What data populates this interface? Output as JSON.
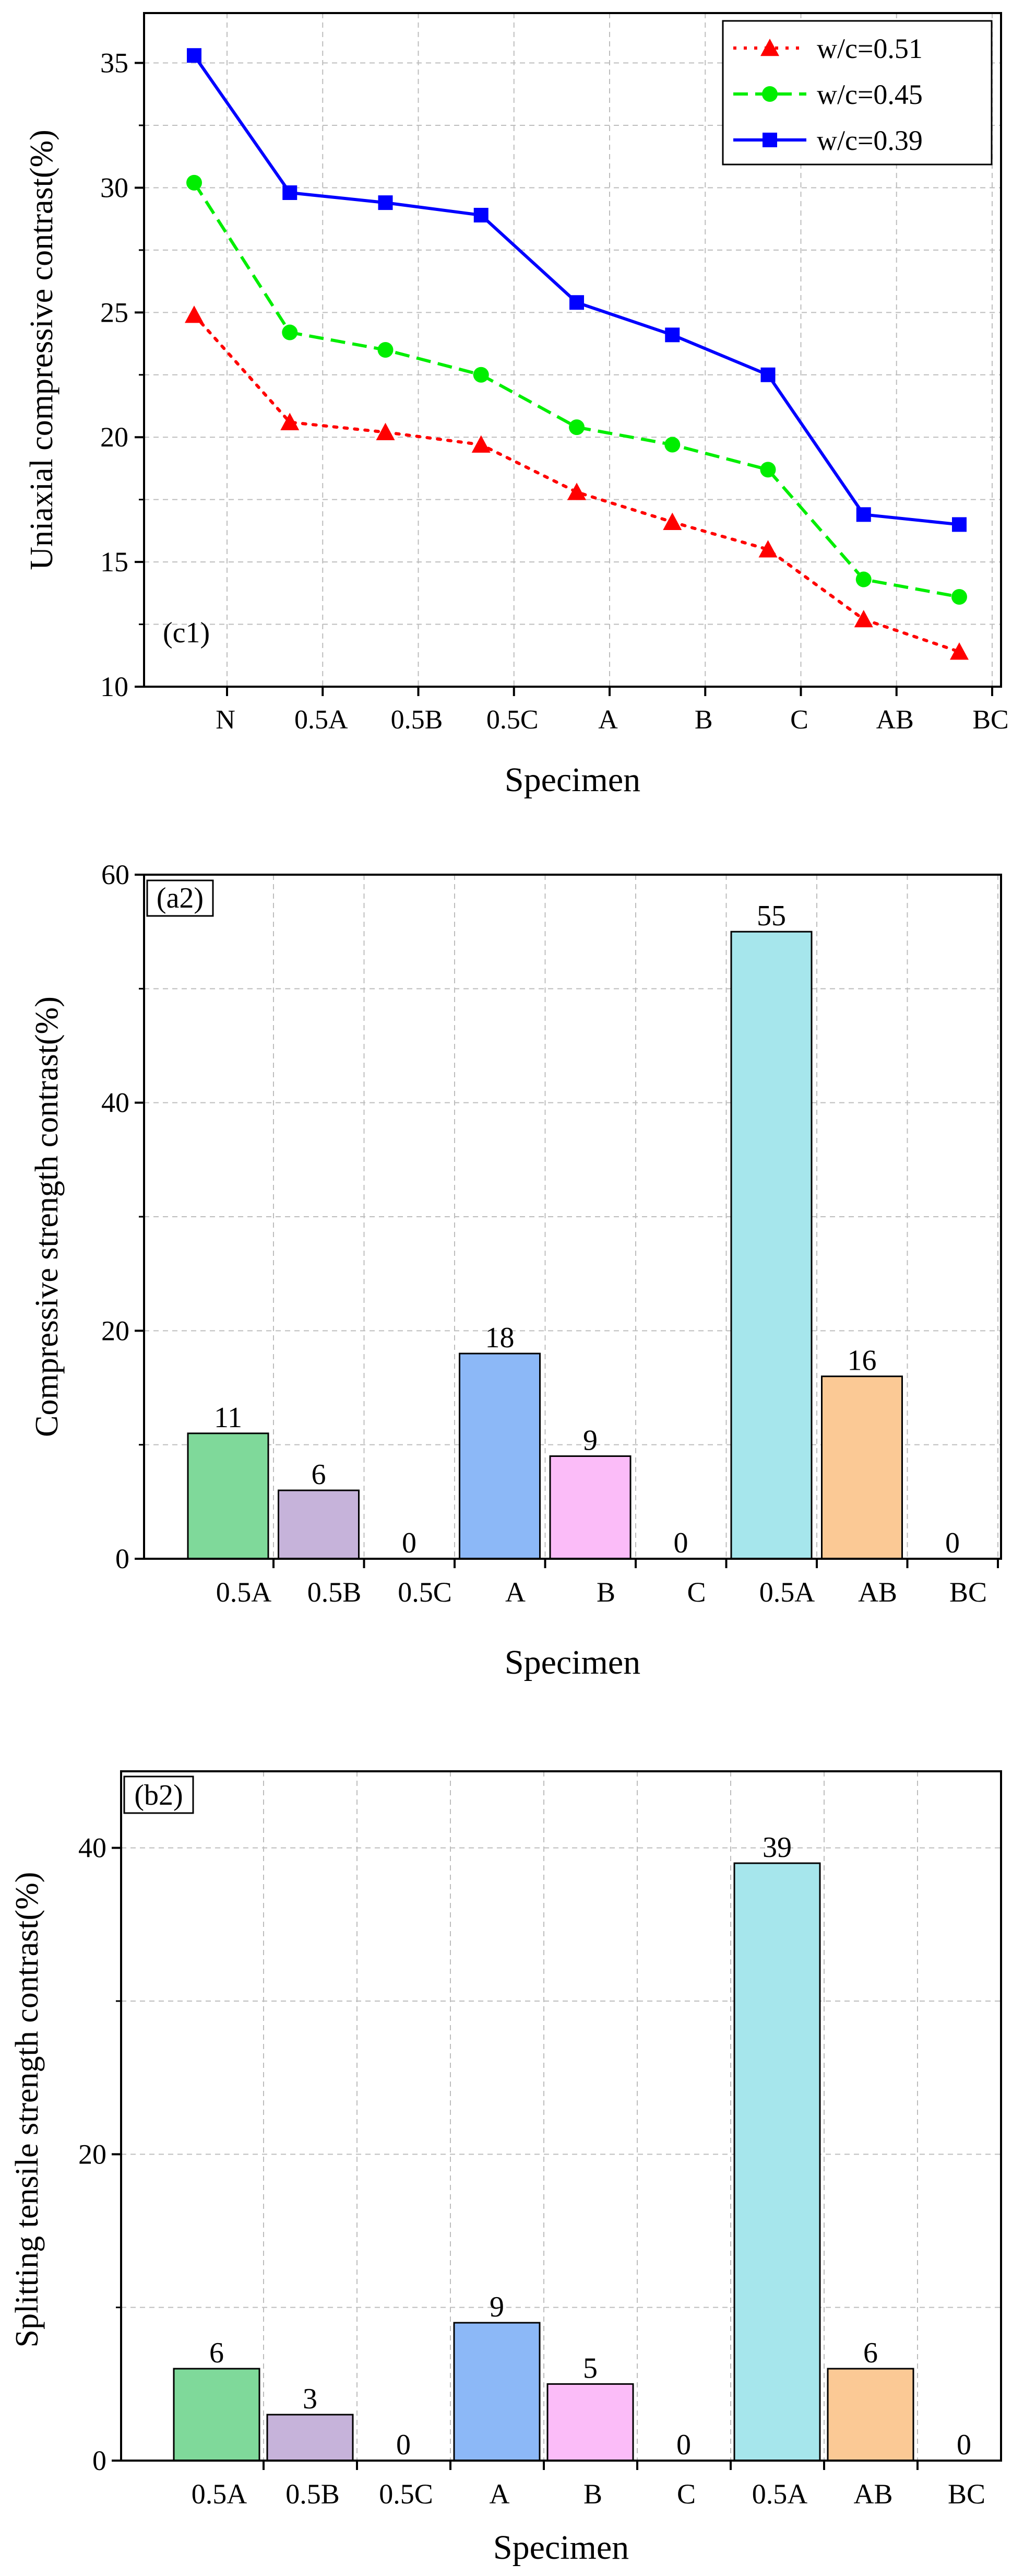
{
  "chart_data": [
    {
      "type": "line",
      "panel_label": "(c1)",
      "ylabel": "Uniaxial compressive contrast(%)",
      "xlabel": "Specimen",
      "categories": [
        "N",
        "0.5A",
        "0.5B",
        "0.5C",
        "A",
        "B",
        "C",
        "AB",
        "BC"
      ],
      "ylim": [
        10,
        37
      ],
      "yticks": [
        10,
        15,
        20,
        25,
        30,
        35
      ],
      "grid": true,
      "legend_position": "top-right",
      "series": [
        {
          "name": "w/c=0.51",
          "color": "#ff0000",
          "marker": "triangle",
          "dash": "dotted",
          "values": [
            24.9,
            20.6,
            20.2,
            19.7,
            17.8,
            16.6,
            15.5,
            12.7,
            11.4
          ]
        },
        {
          "name": "w/c=0.45",
          "color": "#00ee00",
          "marker": "circle",
          "dash": "dashed",
          "values": [
            30.2,
            24.2,
            23.5,
            22.5,
            20.4,
            19.7,
            18.7,
            14.3,
            13.6
          ]
        },
        {
          "name": "w/c=0.39",
          "color": "#0000ff",
          "marker": "square",
          "dash": "solid",
          "values": [
            35.3,
            29.8,
            29.4,
            28.9,
            25.4,
            24.1,
            22.5,
            16.9,
            16.5
          ]
        }
      ]
    },
    {
      "type": "bar",
      "panel_label": "(a2)",
      "ylabel": "Compressive strength contrast(%)",
      "xlabel": "Specimen",
      "categories": [
        "0.5A",
        "0.5B",
        "0.5C",
        "A",
        "B",
        "C",
        "0.5A",
        "AB",
        "BC"
      ],
      "values": [
        11,
        6,
        0,
        18,
        9,
        0,
        55,
        16,
        0
      ],
      "value_labels": [
        "11",
        "6",
        "0",
        "18",
        "9",
        "0",
        "55",
        "16",
        "0"
      ],
      "colors": [
        "#7fd99a",
        "#c6b3da",
        "#c6b3da",
        "#8cb8f7",
        "#fbbcf8",
        "#fbbcf8",
        "#a6e6ec",
        "#fbc995",
        "#fbc995"
      ],
      "ylim": [
        0,
        60
      ],
      "yticks": [
        0,
        20,
        40,
        60
      ],
      "grid": true
    },
    {
      "type": "bar",
      "panel_label": "(b2)",
      "ylabel": "Splitting tensile strength contrast(%)",
      "xlabel": "Specimen",
      "categories": [
        "0.5A",
        "0.5B",
        "0.5C",
        "A",
        "B",
        "C",
        "0.5A",
        "AB",
        "BC"
      ],
      "values": [
        6,
        3,
        0,
        9,
        5,
        0,
        39,
        6,
        0
      ],
      "value_labels": [
        "6",
        "3",
        "0",
        "9",
        "5",
        "0",
        "39",
        "6",
        "0"
      ],
      "colors": [
        "#7fd99a",
        "#c6b3da",
        "#c6b3da",
        "#8cb8f7",
        "#fbbcf8",
        "#fbbcf8",
        "#a6e6ec",
        "#fbc995",
        "#fbc995"
      ],
      "ylim": [
        0,
        45
      ],
      "yticks": [
        0,
        20,
        40
      ],
      "grid": true
    }
  ]
}
